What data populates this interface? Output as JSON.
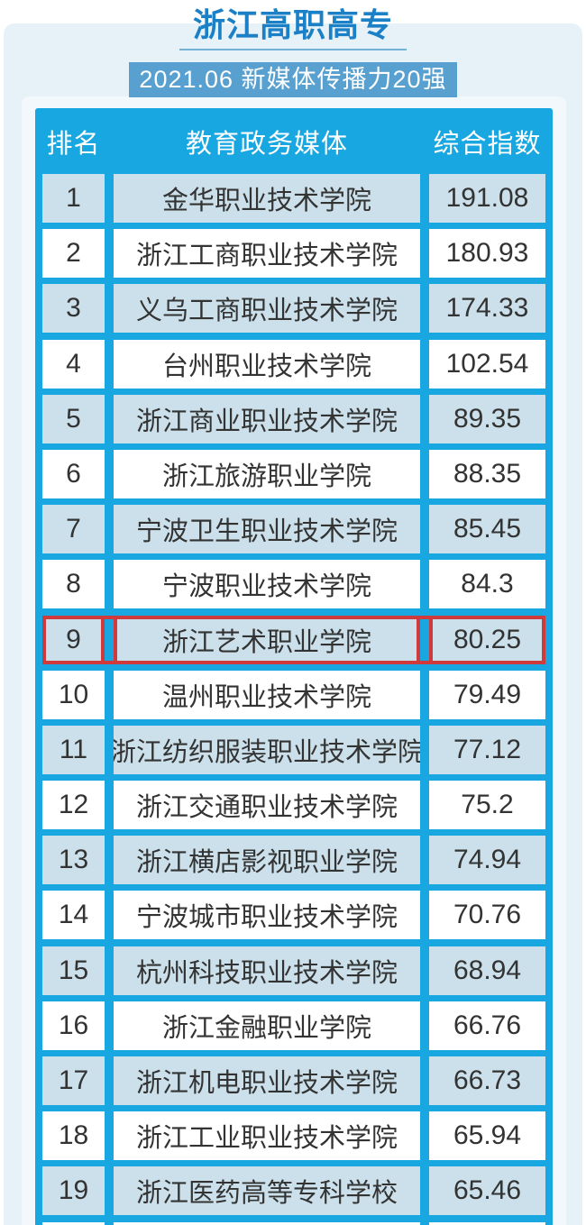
{
  "page": {
    "title": "浙江高职高专",
    "subtitle": "2021.06 新媒体传播力20强"
  },
  "colors": {
    "title_blue": "#1b80c5",
    "underline_blue": "#74b1d6",
    "subtitle_bg": "#58a0d0",
    "grid_blue": "#18a7e1",
    "row_alt": "#cbe0ea",
    "page_bg": "#e7f1f8",
    "panel_bg": "#f2f8fb",
    "highlight_red": "#cf3a3c",
    "text_dark": "#333333"
  },
  "chart_data": {
    "type": "table",
    "title": "浙江高职高专",
    "subtitle": "2021.06 新媒体传播力20强",
    "columns": [
      "排名",
      "教育政务媒体",
      "综合指数"
    ],
    "rows": [
      [
        "1",
        "金华职业技术学院",
        "191.08"
      ],
      [
        "2",
        "浙江工商职业技术学院",
        "180.93"
      ],
      [
        "3",
        "义乌工商职业技术学院",
        "174.33"
      ],
      [
        "4",
        "台州职业技术学院",
        "102.54"
      ],
      [
        "5",
        "浙江商业职业技术学院",
        "89.35"
      ],
      [
        "6",
        "浙江旅游职业学院",
        "88.35"
      ],
      [
        "7",
        "宁波卫生职业技术学院",
        "85.45"
      ],
      [
        "8",
        "宁波职业技术学院",
        "84.3"
      ],
      [
        "9",
        "浙江艺术职业学院",
        "80.25"
      ],
      [
        "10",
        "温州职业技术学院",
        "79.49"
      ],
      [
        "11",
        "浙江纺织服装职业技术学院",
        "77.12"
      ],
      [
        "12",
        "浙江交通职业技术学院",
        "75.2"
      ],
      [
        "13",
        "浙江横店影视职业学院",
        "74.94"
      ],
      [
        "14",
        "宁波城市职业技术学院",
        "70.76"
      ],
      [
        "15",
        "杭州科技职业技术学院",
        "68.94"
      ],
      [
        "16",
        "浙江金融职业学院",
        "66.76"
      ],
      [
        "17",
        "浙江机电职业技术学院",
        "66.73"
      ],
      [
        "18",
        "浙江工业职业技术学院",
        "65.94"
      ],
      [
        "19",
        "浙江医药高等专科学校",
        "65.46"
      ]
    ],
    "highlighted_row_rank": "9",
    "layout_hints": "rows alternate light-blue/white starting light-blue; row with rank 9 outlined in red; 20th row cut off at bottom edge"
  }
}
